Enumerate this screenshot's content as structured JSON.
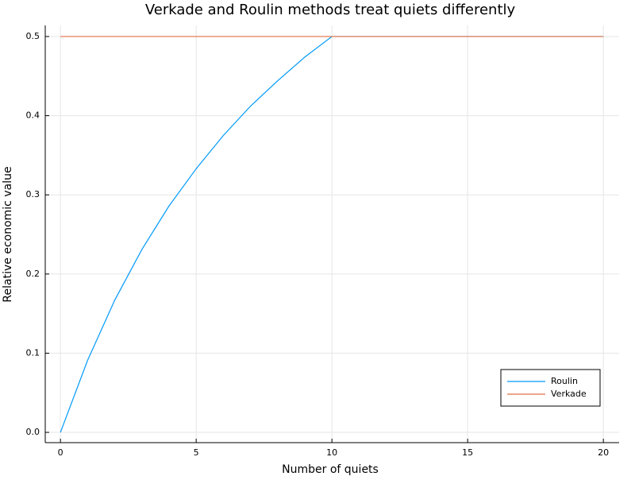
{
  "chart_data": {
    "type": "line",
    "title": "Verkade and Roulin methods treat quiets differently",
    "xlabel": "Number of quiets",
    "ylabel": "Relative economic value",
    "x": [
      0,
      1,
      2,
      3,
      4,
      5,
      6,
      7,
      8,
      9,
      10,
      11,
      12,
      13,
      14,
      15,
      16,
      17,
      18,
      19,
      20
    ],
    "series": [
      {
        "name": "Roulin",
        "color": "#009af9",
        "values": [
          0,
          0.091,
          0.167,
          0.231,
          0.286,
          0.333,
          0.375,
          0.412,
          0.444,
          0.474,
          0.5,
          0.5,
          0.5,
          0.5,
          0.5,
          0.5,
          0.5,
          0.5,
          0.5,
          0.5,
          0.5
        ]
      },
      {
        "name": "Verkade",
        "color": "#e26f46",
        "values": [
          0.5,
          0.5,
          0.5,
          0.5,
          0.5,
          0.5,
          0.5,
          0.5,
          0.5,
          0.5,
          0.5,
          0.5,
          0.5,
          0.5,
          0.5,
          0.5,
          0.5,
          0.5,
          0.5,
          0.5,
          0.5
        ]
      }
    ],
    "xlim": [
      -0.56,
      20.58
    ],
    "ylim": [
      -0.013,
      0.514
    ],
    "xticks": [
      0,
      5,
      10,
      15,
      20
    ],
    "yticks": [
      {
        "value": 0,
        "label": "0.0"
      },
      0.1,
      0.2,
      0.3,
      0.4,
      0.5
    ],
    "grid": true,
    "legend": "bottom-right"
  }
}
